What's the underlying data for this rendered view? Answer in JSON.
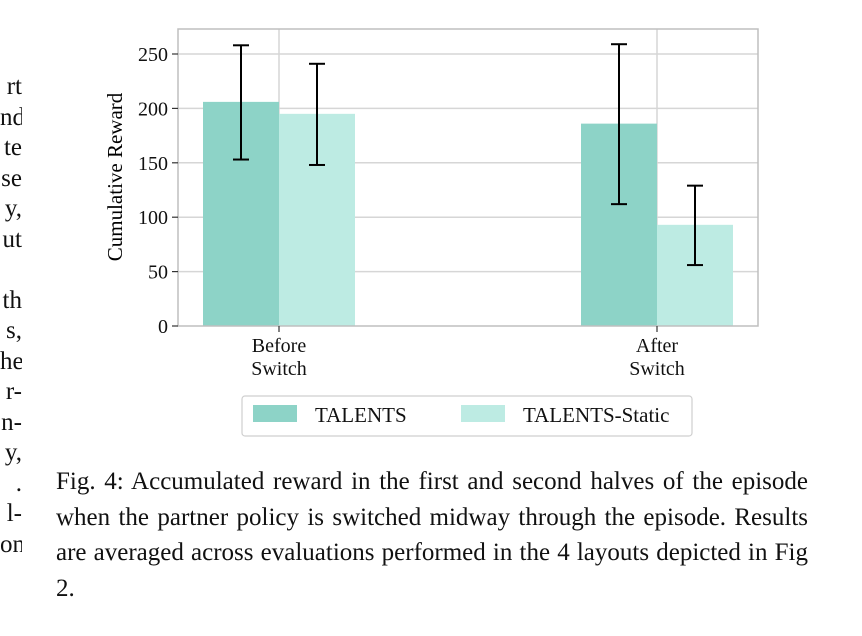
{
  "side_text_lines": [
    "rt",
    "nd",
    "te",
    "se",
    "y,",
    "ut",
    "",
    "th",
    "s,",
    "he",
    "r-",
    "n-",
    "y,",
    ".",
    "l-",
    "on"
  ],
  "caption": "Fig. 4: Accumulated reward in the first and second halves of the episode when the partner policy is switched midway through the episode. Results are averaged across evaluations performed in the 4 layouts depicted in Fig 2.",
  "colors": {
    "talents": "#8dd3c7",
    "talents_static": "#bdebe3",
    "grid": "#d6d6d6",
    "axis": "#bfbfbf",
    "error_bar": "#000000"
  },
  "chart_data": {
    "type": "bar",
    "categories": [
      [
        "Before",
        "Switch"
      ],
      [
        "After",
        "Switch"
      ]
    ],
    "series": [
      {
        "name": "TALENTS",
        "values": [
          206,
          186
        ],
        "error_low": [
          153,
          112
        ],
        "error_high": [
          258,
          259
        ]
      },
      {
        "name": "TALENTS-Static",
        "values": [
          195,
          93
        ],
        "error_low": [
          148,
          56
        ],
        "error_high": [
          241,
          129
        ]
      }
    ],
    "ylabel": "Cumulative Reward",
    "xlabel": "",
    "ylim": [
      0,
      270
    ],
    "yticks": [
      0,
      50,
      100,
      150,
      200,
      250
    ],
    "grid": true,
    "legend": "bottom"
  }
}
